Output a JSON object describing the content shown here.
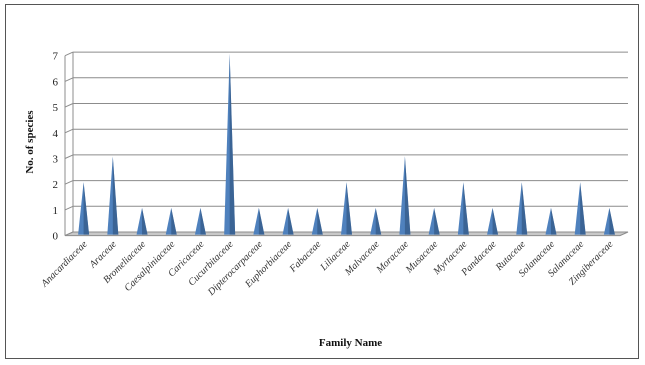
{
  "chart_data": {
    "type": "area",
    "xlabel": "Family Name",
    "ylabel": "No. of species",
    "ylim": [
      0,
      7
    ],
    "yticks": [
      0,
      1,
      2,
      3,
      4,
      5,
      6,
      7
    ],
    "grid": true,
    "categories": [
      "Anacardiaceae",
      "Araceae",
      "Bromeliaceae",
      "Caesalpiniaceae",
      "Caricaceae",
      "Cucurbitaceae",
      "Dipterocarpaceae",
      "Euphorbiaceae",
      "Fabaceae",
      "Liliaceae",
      "Malvaceae",
      "Moraceae",
      "Musaceae",
      "Myrtaceae",
      "Pandaceae",
      "Rutaceae",
      "Solanaceae",
      "Salanaceae",
      "Zingiberaceae"
    ],
    "values": [
      2,
      3,
      1,
      1,
      1,
      7,
      1,
      1,
      1,
      2,
      1,
      3,
      1,
      2,
      1,
      2,
      1,
      2,
      1
    ],
    "colors": {
      "fill": "#4f81bd",
      "shadow": "#2c4d75",
      "grid": "#8c8c8c",
      "floor": "#c8c8c8"
    }
  }
}
